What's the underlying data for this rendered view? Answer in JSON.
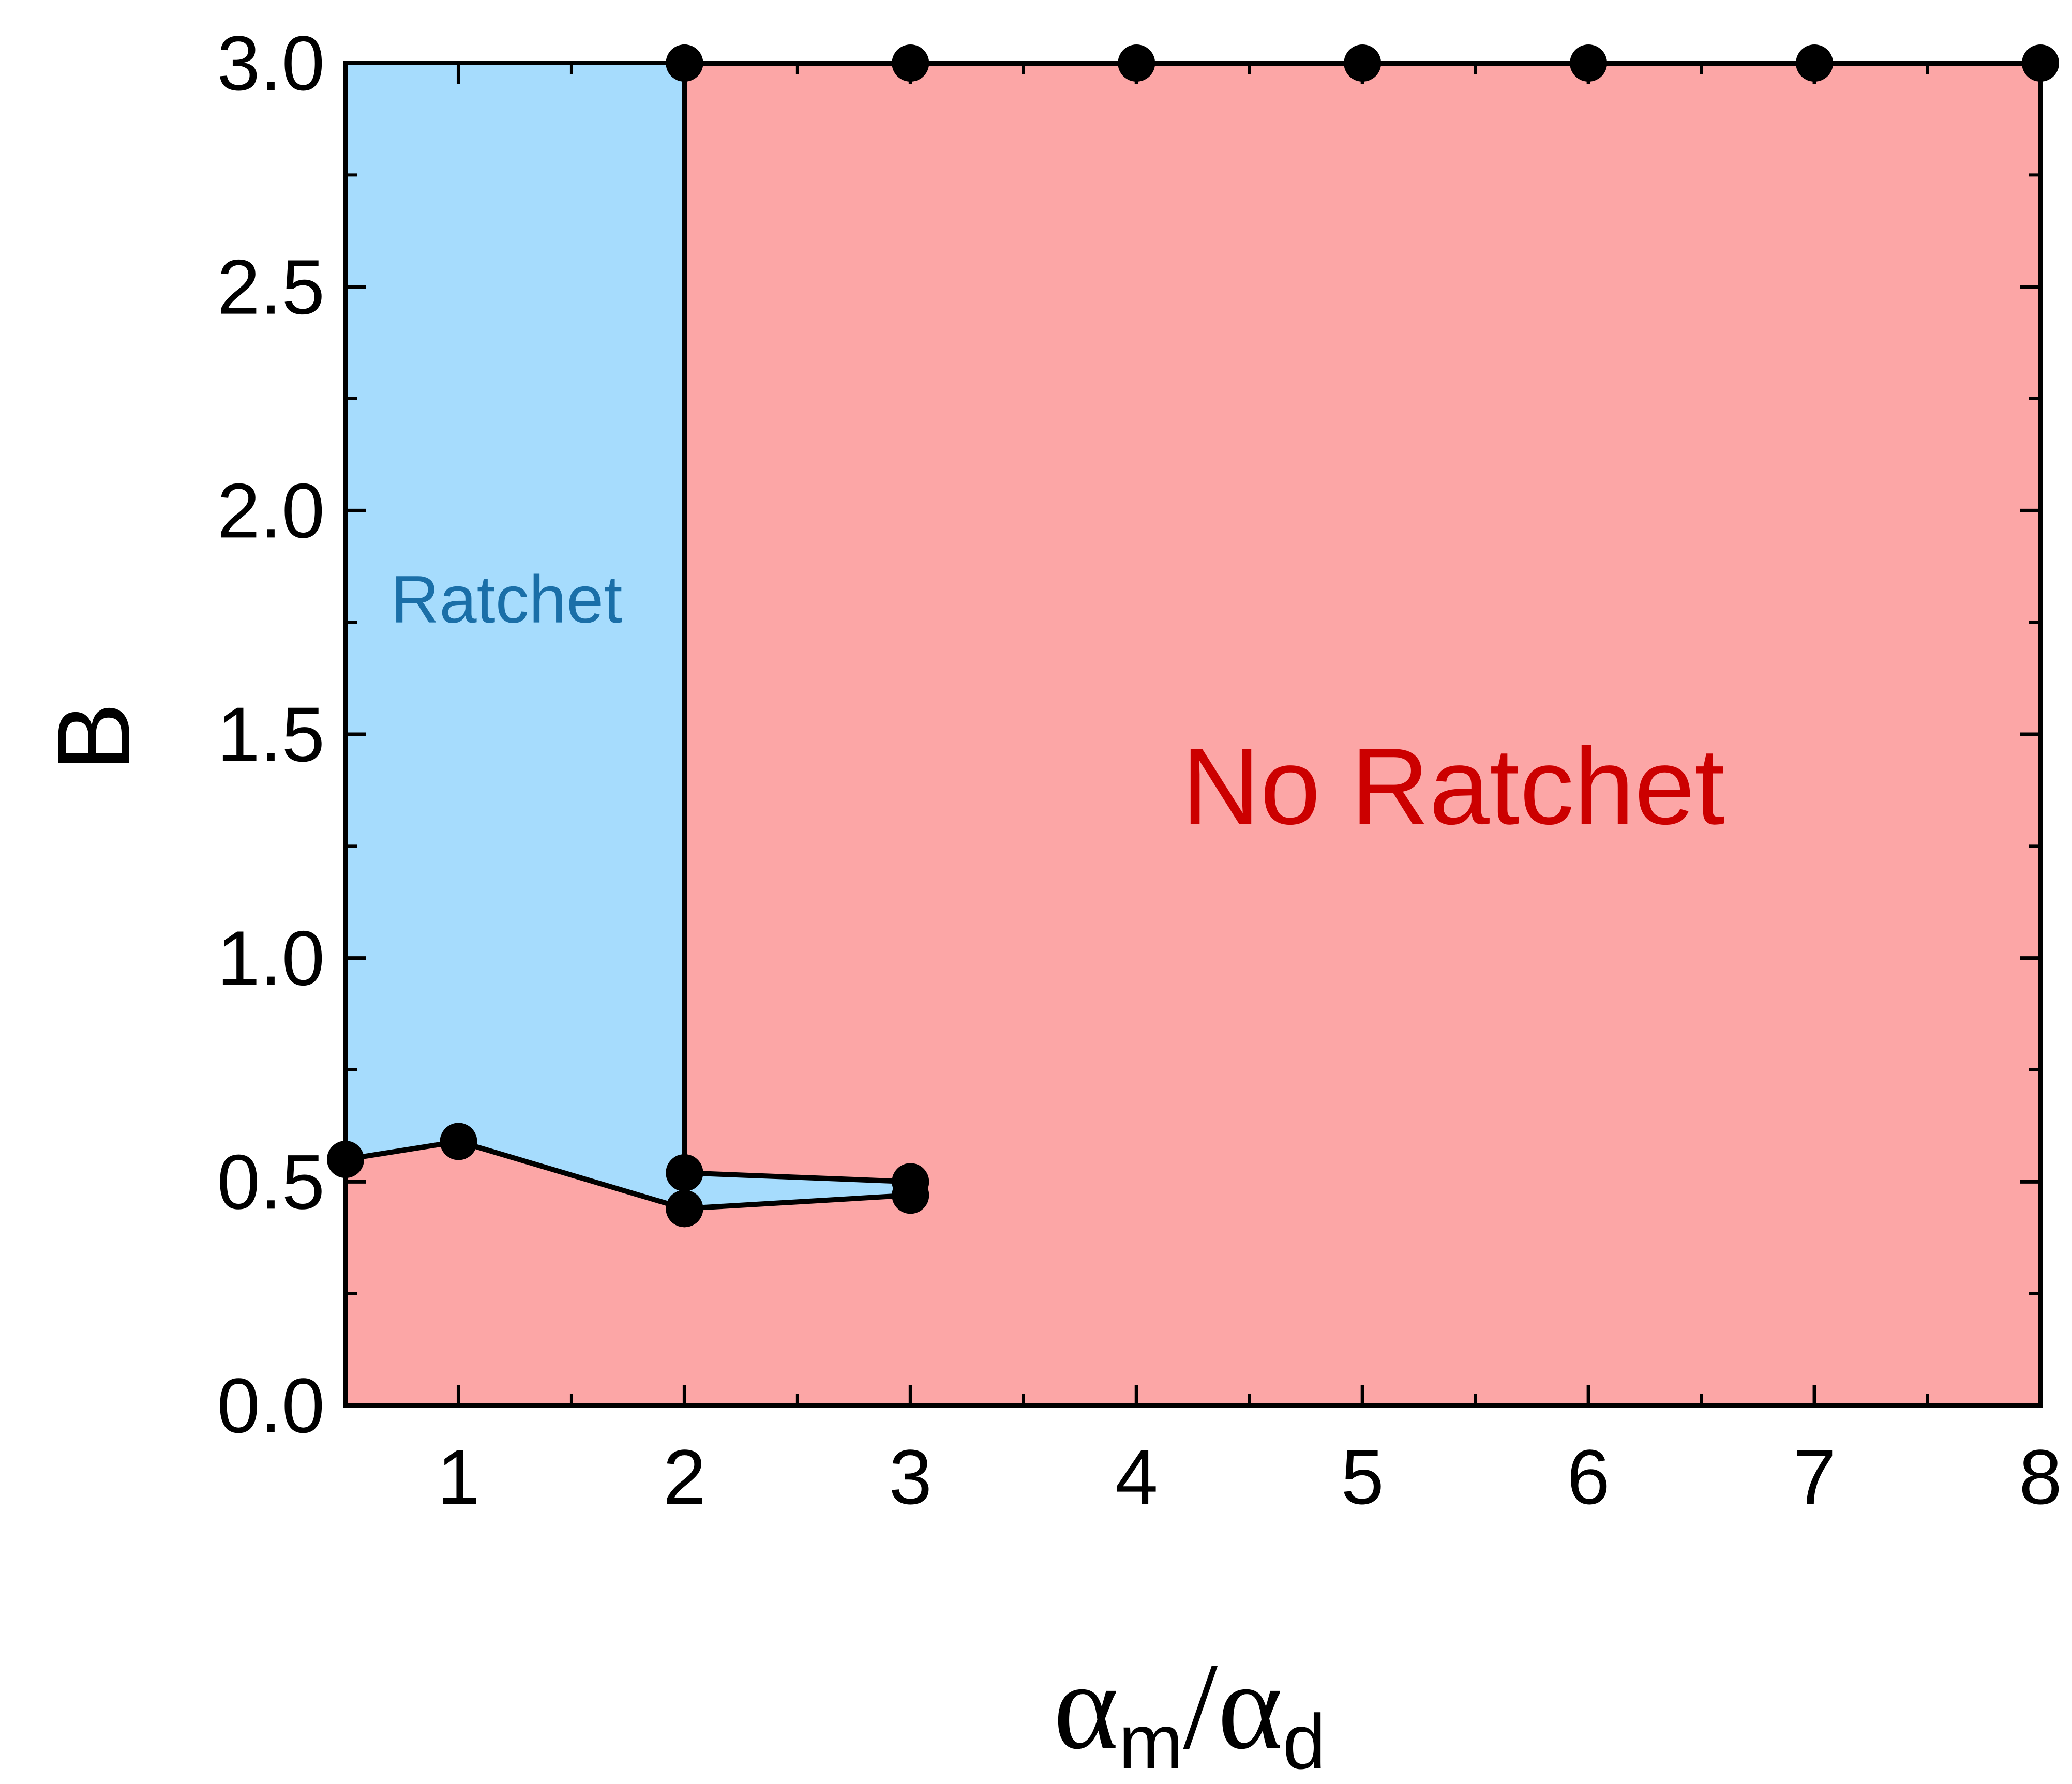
{
  "chart_data": {
    "type": "area",
    "xlabel": {
      "base": "α",
      "sub1": "m",
      "sep": "/",
      "base2": "α",
      "sub2": "d"
    },
    "ylabel": "B",
    "xlim": [
      0.5,
      8
    ],
    "ylim": [
      0,
      3
    ],
    "x_ticks": [
      1,
      2,
      3,
      4,
      5,
      6,
      7,
      8
    ],
    "x_tick_labels": [
      "1",
      "2",
      "3",
      "4",
      "5",
      "6",
      "7",
      "8"
    ],
    "y_ticks": [
      0,
      0.5,
      1,
      1.5,
      2,
      2.5,
      3
    ],
    "y_tick_labels": [
      "0.0",
      "0.5",
      "1.0",
      "1.5",
      "2.0",
      "2.5",
      "3.0"
    ],
    "grid": false,
    "regions": [
      {
        "name": "Ratchet",
        "label": "Ratchet",
        "color": "#a6dcfd",
        "text_color": "#1a6fa8",
        "label_at": [
          0.7,
          1.75
        ]
      },
      {
        "name": "No Ratchet",
        "label": "No Ratchet",
        "color": "#fca6a6",
        "text_color": "#cc0000",
        "label_at": [
          4.2,
          1.3
        ]
      }
    ],
    "series": [
      {
        "x": [
          0.5,
          1,
          2
        ],
        "y": [
          0.55,
          0.59,
          0.44
        ]
      },
      {
        "x": [
          2,
          3
        ],
        "y": [
          0.52,
          0.5
        ]
      },
      {
        "x": [
          2,
          3
        ],
        "y": [
          0.44,
          0.47
        ]
      },
      {
        "x": [
          2,
          2
        ],
        "y": [
          0.52,
          3.0
        ]
      },
      {
        "x": [
          2,
          3,
          4,
          5,
          6,
          7,
          8
        ],
        "y": [
          3.0,
          3.0,
          3.0,
          3.0,
          3.0,
          3.0,
          3.0
        ]
      }
    ]
  }
}
